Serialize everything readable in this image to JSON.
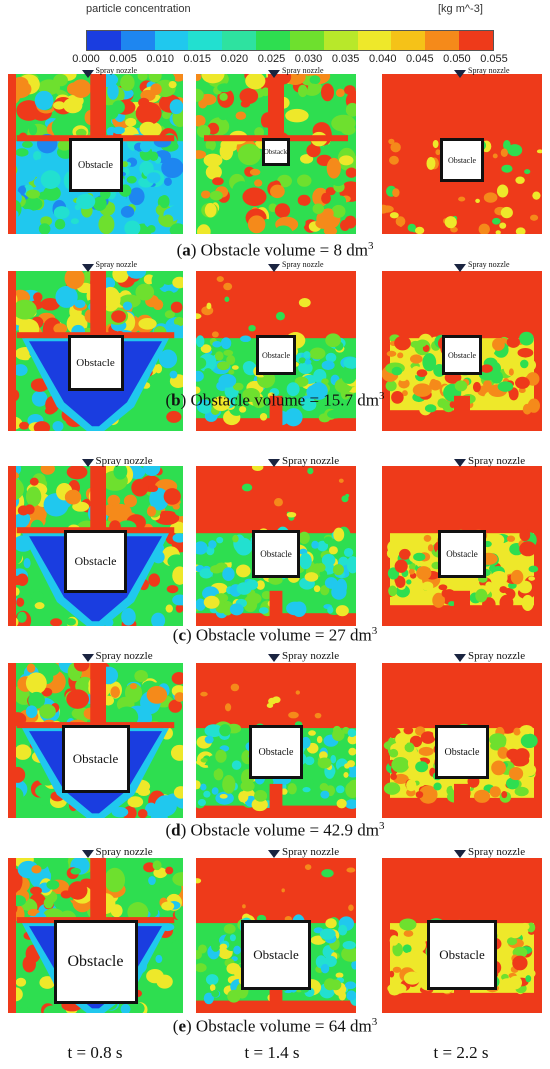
{
  "legend": {
    "title": "particle concentration",
    "unit": "[kg m^-3]",
    "ticks": [
      "0.000",
      "0.005",
      "0.010",
      "0.015",
      "0.020",
      "0.025",
      "0.030",
      "0.035",
      "0.040",
      "0.045",
      "0.050",
      "0.055"
    ],
    "colors": [
      "#1a3de0",
      "#1e86f0",
      "#20c8ee",
      "#22e0d0",
      "#2ee2a0",
      "#2ede50",
      "#6ee02e",
      "#b8e82a",
      "#eee82a",
      "#f5c218",
      "#f58a1a",
      "#ee3a1a"
    ]
  },
  "nozzle_label": "Spray nozzle",
  "obstacle_label": "Obstacle",
  "rows": [
    {
      "letter": "a",
      "caption": ") Obstacle volume = 8 dm",
      "sup": "3"
    },
    {
      "letter": "b",
      "caption": ") Obstacle volume = 15.7 dm",
      "sup": "3"
    },
    {
      "letter": "c",
      "caption": ") Obstacle volume = 27 dm",
      "sup": "3"
    },
    {
      "letter": "d",
      "caption": ") Obstacle volume = 42.9 dm",
      "sup": "3"
    },
    {
      "letter": "e",
      "caption": ") Obstacle volume = 64 dm",
      "sup": "3"
    }
  ],
  "time_labels": [
    "t = 0.8 s",
    "t = 1.4 s",
    "t = 2.2 s"
  ]
}
